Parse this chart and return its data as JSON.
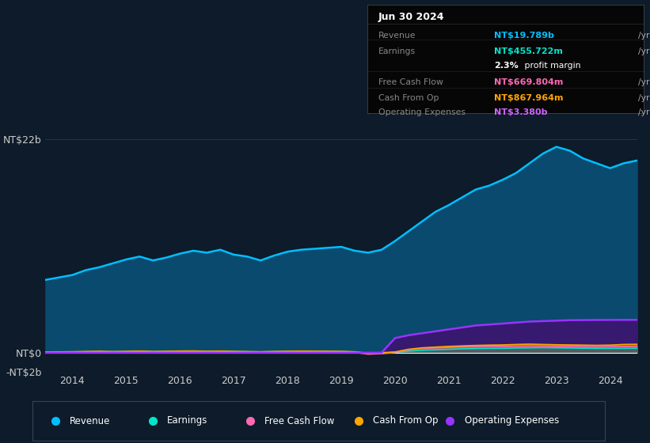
{
  "bg_color": "#0d1b2a",
  "plot_bg_color": "#0d1b2a",
  "years": [
    2013.5,
    2014.0,
    2014.25,
    2014.5,
    2014.75,
    2015.0,
    2015.25,
    2015.5,
    2015.75,
    2016.0,
    2016.25,
    2016.5,
    2016.75,
    2017.0,
    2017.25,
    2017.5,
    2017.75,
    2018.0,
    2018.25,
    2018.5,
    2018.75,
    2019.0,
    2019.25,
    2019.5,
    2019.75,
    2020.0,
    2020.25,
    2020.5,
    2020.75,
    2021.0,
    2021.25,
    2021.5,
    2021.75,
    2022.0,
    2022.25,
    2022.5,
    2022.75,
    2023.0,
    2023.25,
    2023.5,
    2023.75,
    2024.0,
    2024.25,
    2024.5
  ],
  "revenue": [
    7.5,
    8.0,
    8.5,
    8.8,
    9.2,
    9.6,
    9.9,
    9.5,
    9.8,
    10.2,
    10.5,
    10.3,
    10.6,
    10.1,
    9.9,
    9.5,
    10.0,
    10.4,
    10.6,
    10.7,
    10.8,
    10.9,
    10.5,
    10.3,
    10.6,
    11.5,
    12.5,
    13.5,
    14.5,
    15.2,
    16.0,
    16.8,
    17.2,
    17.8,
    18.5,
    19.5,
    20.5,
    21.2,
    20.8,
    20.0,
    19.5,
    19.0,
    19.5,
    19.789
  ],
  "earnings": [
    0.05,
    0.08,
    0.1,
    0.12,
    0.1,
    0.12,
    0.14,
    0.11,
    0.13,
    0.15,
    0.16,
    0.13,
    0.15,
    0.12,
    0.1,
    0.08,
    0.11,
    0.13,
    0.15,
    0.14,
    0.13,
    0.12,
    0.08,
    -0.1,
    -0.05,
    0.05,
    0.15,
    0.25,
    0.3,
    0.35,
    0.4,
    0.42,
    0.44,
    0.45,
    0.48,
    0.5,
    0.52,
    0.5,
    0.48,
    0.46,
    0.44,
    0.44,
    0.45,
    0.456
  ],
  "free_cash_flow": [
    0.03,
    0.05,
    0.07,
    0.08,
    0.06,
    0.08,
    0.1,
    0.07,
    0.09,
    0.1,
    0.11,
    0.09,
    0.1,
    0.08,
    0.06,
    0.04,
    0.07,
    0.09,
    0.1,
    0.09,
    0.08,
    0.07,
    0.03,
    -0.15,
    -0.1,
    0.02,
    0.3,
    0.45,
    0.5,
    0.55,
    0.6,
    0.62,
    0.64,
    0.65,
    0.68,
    0.7,
    0.68,
    0.66,
    0.64,
    0.62,
    0.6,
    0.62,
    0.65,
    0.67
  ],
  "cash_from_op": [
    0.08,
    0.1,
    0.13,
    0.15,
    0.12,
    0.14,
    0.17,
    0.13,
    0.15,
    0.17,
    0.18,
    0.15,
    0.17,
    0.14,
    0.12,
    0.1,
    0.13,
    0.15,
    0.17,
    0.16,
    0.15,
    0.14,
    0.1,
    -0.05,
    0.0,
    0.08,
    0.35,
    0.5,
    0.58,
    0.65,
    0.7,
    0.75,
    0.78,
    0.8,
    0.85,
    0.88,
    0.85,
    0.82,
    0.8,
    0.78,
    0.76,
    0.78,
    0.85,
    0.868
  ],
  "op_expenses": [
    0.0,
    0.0,
    0.0,
    0.0,
    0.0,
    0.0,
    0.0,
    0.0,
    0.0,
    0.0,
    0.0,
    0.0,
    0.0,
    0.0,
    0.0,
    0.0,
    0.0,
    0.0,
    0.0,
    0.0,
    0.0,
    0.0,
    0.0,
    0.0,
    0.0,
    1.5,
    1.8,
    2.0,
    2.2,
    2.4,
    2.6,
    2.8,
    2.9,
    3.0,
    3.1,
    3.2,
    3.25,
    3.3,
    3.35,
    3.36,
    3.37,
    3.375,
    3.38,
    3.38
  ],
  "revenue_color": "#00bfff",
  "revenue_fill": "#0a4a6e",
  "earnings_color": "#00e5cc",
  "free_cash_flow_color": "#ff69b4",
  "cash_from_op_color": "#ffa500",
  "op_expenses_color": "#9933ff",
  "op_expenses_fill": "#3d1470",
  "grid_color": "#1e3a4a",
  "text_color": "#cccccc",
  "xticks": [
    2014,
    2015,
    2016,
    2017,
    2018,
    2019,
    2020,
    2021,
    2022,
    2023,
    2024
  ],
  "legend_items": [
    {
      "label": "Revenue",
      "color": "#00bfff"
    },
    {
      "label": "Earnings",
      "color": "#00e5cc"
    },
    {
      "label": "Free Cash Flow",
      "color": "#ff69b4"
    },
    {
      "label": "Cash From Op",
      "color": "#ffa500"
    },
    {
      "label": "Operating Expenses",
      "color": "#9933ff"
    }
  ],
  "info_box": {
    "date": "Jun 30 2024",
    "rows": [
      {
        "label": "Revenue",
        "value": "NT$19.789b",
        "suffix": "/yr",
        "value_color": "#00bfff"
      },
      {
        "label": "Earnings",
        "value": "NT$455.722m",
        "suffix": "/yr",
        "value_color": "#00e5cc"
      },
      {
        "label": "",
        "value": "2.3%",
        "suffix": " profit margin",
        "value_color": "#ffffff"
      },
      {
        "label": "Free Cash Flow",
        "value": "NT$669.804m",
        "suffix": "/yr",
        "value_color": "#ff69b4"
      },
      {
        "label": "Cash From Op",
        "value": "NT$867.964m",
        "suffix": "/yr",
        "value_color": "#ffa500"
      },
      {
        "label": "Operating Expenses",
        "value": "NT$3.380b",
        "suffix": "/yr",
        "value_color": "#cc66ff"
      }
    ]
  }
}
